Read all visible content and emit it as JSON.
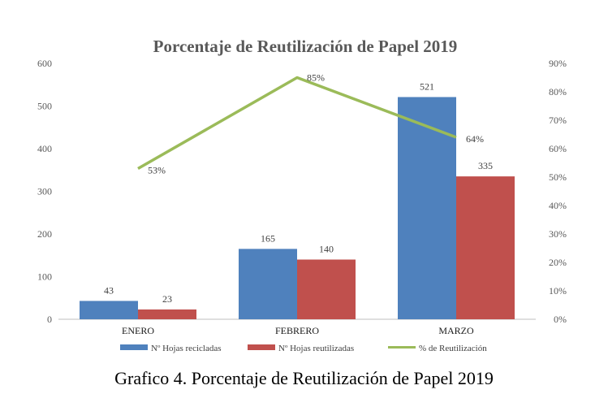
{
  "chart_data": {
    "type": "bar",
    "title": "Porcentaje de Reutilización de Papel 2019",
    "categories": [
      "ENERO",
      "FEBRERO",
      "MARZO"
    ],
    "series": [
      {
        "name": "Nº Hojas recicladas",
        "type": "bar",
        "axis": "left",
        "color": "#4f81bd",
        "values": [
          43,
          165,
          521
        ],
        "labels": [
          "43",
          "165",
          "521"
        ]
      },
      {
        "name": "Nº Hojas reutilizadas",
        "type": "bar",
        "axis": "left",
        "color": "#c0504d",
        "values": [
          23,
          140,
          335
        ],
        "labels": [
          "23",
          "140",
          "335"
        ]
      },
      {
        "name": "% de Reutilización",
        "type": "line",
        "axis": "right",
        "color": "#9bbb59",
        "values": [
          53,
          85,
          64
        ],
        "labels": [
          "53%",
          "85%",
          "64%"
        ]
      }
    ],
    "y_left": {
      "min": 0,
      "max": 600,
      "ticks": [
        "0",
        "100",
        "200",
        "300",
        "400",
        "500",
        "600"
      ]
    },
    "y_right": {
      "min": 0,
      "max": 90,
      "ticks": [
        "0%",
        "10%",
        "20%",
        "30%",
        "40%",
        "50%",
        "60%",
        "70%",
        "80%",
        "90%"
      ]
    },
    "grid": false,
    "legend": "bottom"
  },
  "caption": "Grafico 4. Porcentaje de Reutilización de Papel 2019"
}
